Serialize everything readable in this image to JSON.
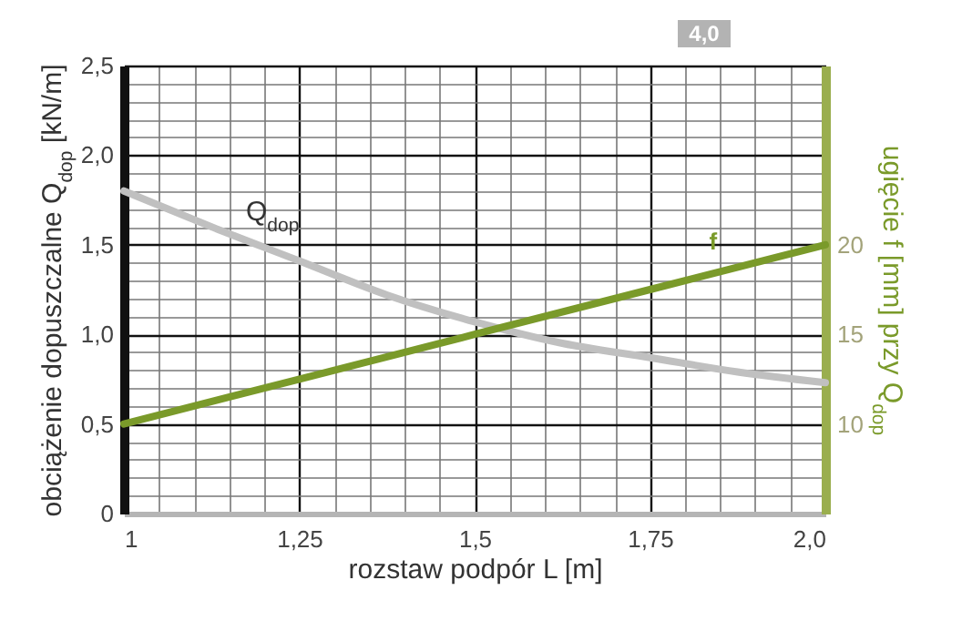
{
  "chart_data": {
    "type": "line",
    "xlabel": "rozstaw podpór L [m]",
    "ylabel": "obciążenie dopuszczalne Q$_{dop}$ [kN/m]",
    "y2label": "ugięcie f [mm] przy Q$_{dop}$",
    "x": [
      1,
      1.125,
      1.25,
      1.375,
      1.5,
      1.625,
      1.75,
      1.875,
      2
    ],
    "series": [
      {
        "name": "Q$_{dop}$",
        "color": "#c0c0c0",
        "values": [
          1.8,
          1.6,
          1.41,
          1.22,
          1.07,
          0.95,
          0.87,
          0.79,
          0.73
        ]
      },
      {
        "name": "f",
        "color": "#7a9a2a",
        "axis": "y2",
        "x": [
          1,
          1.5,
          2
        ],
        "values": [
          10,
          15,
          20
        ]
      }
    ],
    "xlim": [
      1,
      2
    ],
    "xticks": [
      1,
      {
        "value": 1.05,
        "label": null
      },
      {
        "value": 1.1,
        "label": null
      },
      {
        "value": 1.15,
        "label": null
      },
      {
        "value": 1.2,
        "label": null
      },
      {
        "value": 1.25,
        "label": "1,25"
      },
      {
        "value": 1.3,
        "label": null
      },
      {
        "value": 1.35,
        "label": null
      },
      {
        "value": 1.4,
        "label": null
      },
      {
        "value": 1.45,
        "label": null
      },
      {
        "value": 1.5,
        "label": "1,5"
      },
      {
        "value": 1.55,
        "label": null
      },
      {
        "value": 1.6,
        "label": null
      },
      {
        "value": 1.65,
        "label": null
      },
      {
        "value": 1.7,
        "label": null
      },
      {
        "value": 1.75,
        "label": "1,75"
      },
      {
        "value": 1.8,
        "label": null
      },
      {
        "value": 1.85,
        "label": null
      },
      {
        "value": 1.9,
        "label": null
      },
      {
        "value": 1.95,
        "label": null
      },
      {
        "value": 2,
        "label": "2,0"
      }
    ],
    "ylim": [
      0,
      2.5
    ],
    "yticks": [
      0,
      {
        "value": 0.1,
        "label": null
      },
      {
        "value": 0.2,
        "label": null
      },
      {
        "value": 0.3,
        "label": null
      },
      {
        "value": 0.4,
        "label": null
      },
      {
        "value": 0.5,
        "label": "0,5"
      },
      {
        "value": 0.6,
        "label": null
      },
      {
        "value": 0.7,
        "label": null
      },
      {
        "value": 0.8,
        "label": null
      },
      {
        "value": 0.9,
        "label": null
      },
      {
        "value": 1,
        "label": "1,0"
      },
      {
        "value": 1.1,
        "label": null
      },
      {
        "value": 1.2,
        "label": null
      },
      {
        "value": 1.3,
        "label": null
      },
      {
        "value": 1.4,
        "label": null
      },
      {
        "value": 1.5,
        "label": "1,5"
      },
      {
        "value": 1.6,
        "label": null
      },
      {
        "value": 1.7,
        "label": null
      },
      {
        "value": 1.8,
        "label": null
      },
      {
        "value": 1.9,
        "label": null
      },
      {
        "value": 2,
        "label": "2,0"
      },
      {
        "value": 2.1,
        "label": null
      },
      {
        "value": 2.2,
        "label": null
      },
      {
        "value": 2.3,
        "label": null
      },
      {
        "value": 2.4,
        "label": null
      },
      {
        "value": 2.5,
        "label": "2,5"
      }
    ],
    "y2lim": [
      5,
      30
    ],
    "y2ticks": [
      10,
      15,
      20
    ],
    "grid": true,
    "annotations": [
      "4,0"
    ]
  }
}
